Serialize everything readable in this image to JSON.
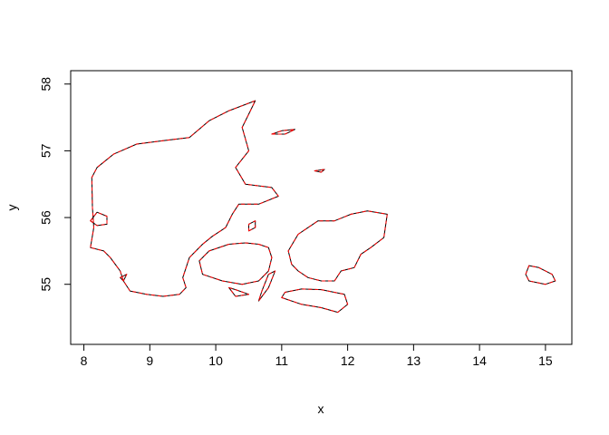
{
  "chart_data": {
    "type": "line",
    "title": "",
    "xlabel": "x",
    "ylabel": "y",
    "xlim": [
      7.8,
      15.4
    ],
    "ylim": [
      54.1,
      58.2
    ],
    "xticks": [
      8,
      9,
      10,
      11,
      12,
      13,
      14,
      15
    ],
    "yticks": [
      55,
      56,
      57,
      58
    ],
    "grid": false,
    "legend": "none",
    "series": [
      {
        "style": "solid",
        "color": "#000000",
        "polygons": [
          [
            [
              8.1,
              55.55
            ],
            [
              8.15,
              55.85
            ],
            [
              8.13,
              56.15
            ],
            [
              8.12,
              56.6
            ],
            [
              8.2,
              56.75
            ],
            [
              8.45,
              56.95
            ],
            [
              8.8,
              57.1
            ],
            [
              9.2,
              57.15
            ],
            [
              9.6,
              57.2
            ],
            [
              9.9,
              57.45
            ],
            [
              10.2,
              57.6
            ],
            [
              10.6,
              57.75
            ],
            [
              10.5,
              57.55
            ],
            [
              10.4,
              57.35
            ],
            [
              10.5,
              57.0
            ],
            [
              10.3,
              56.75
            ],
            [
              10.45,
              56.5
            ],
            [
              10.85,
              56.45
            ],
            [
              10.95,
              56.32
            ],
            [
              10.65,
              56.2
            ],
            [
              10.35,
              56.2
            ],
            [
              10.25,
              56.05
            ],
            [
              10.15,
              55.85
            ],
            [
              9.95,
              55.72
            ],
            [
              9.8,
              55.6
            ],
            [
              9.7,
              55.5
            ],
            [
              9.6,
              55.4
            ],
            [
              9.5,
              55.1
            ],
            [
              9.55,
              54.95
            ],
            [
              9.45,
              54.85
            ],
            [
              9.2,
              54.82
            ],
            [
              8.95,
              54.85
            ],
            [
              8.7,
              54.9
            ],
            [
              8.6,
              55.05
            ],
            [
              8.55,
              55.2
            ],
            [
              8.4,
              55.4
            ],
            [
              8.3,
              55.5
            ],
            [
              8.1,
              55.55
            ]
          ],
          [
            [
              10.65,
              55.6
            ],
            [
              10.8,
              55.55
            ],
            [
              10.85,
              55.4
            ],
            [
              10.8,
              55.2
            ],
            [
              10.65,
              55.05
            ],
            [
              10.4,
              55.0
            ],
            [
              10.1,
              55.05
            ],
            [
              9.8,
              55.15
            ],
            [
              9.75,
              55.35
            ],
            [
              9.9,
              55.5
            ],
            [
              10.2,
              55.6
            ],
            [
              10.45,
              55.62
            ],
            [
              10.65,
              55.6
            ]
          ],
          [
            [
              11.25,
              55.75
            ],
            [
              11.55,
              55.95
            ],
            [
              11.8,
              55.95
            ],
            [
              12.05,
              56.05
            ],
            [
              12.3,
              56.1
            ],
            [
              12.6,
              56.05
            ],
            [
              12.55,
              55.7
            ],
            [
              12.35,
              55.55
            ],
            [
              12.2,
              55.45
            ],
            [
              12.1,
              55.25
            ],
            [
              11.9,
              55.2
            ],
            [
              11.8,
              55.05
            ],
            [
              11.6,
              55.05
            ],
            [
              11.4,
              55.1
            ],
            [
              11.25,
              55.2
            ],
            [
              11.15,
              55.3
            ],
            [
              11.1,
              55.5
            ],
            [
              11.25,
              55.75
            ]
          ],
          [
            [
              11.0,
              54.8
            ],
            [
              11.3,
              54.7
            ],
            [
              11.6,
              54.65
            ],
            [
              11.85,
              54.58
            ],
            [
              12.0,
              54.7
            ],
            [
              11.95,
              54.85
            ],
            [
              11.6,
              54.92
            ],
            [
              11.3,
              54.93
            ],
            [
              11.05,
              54.88
            ],
            [
              11.0,
              54.8
            ]
          ],
          [
            [
              14.7,
              55.15
            ],
            [
              14.75,
              55.28
            ],
            [
              14.9,
              55.25
            ],
            [
              15.1,
              55.15
            ],
            [
              15.15,
              55.05
            ],
            [
              15.0,
              55.0
            ],
            [
              14.75,
              55.05
            ],
            [
              14.7,
              55.15
            ]
          ],
          [
            [
              8.1,
              55.95
            ],
            [
              8.2,
              56.08
            ],
            [
              8.35,
              56.02
            ],
            [
              8.35,
              55.9
            ],
            [
              8.2,
              55.88
            ],
            [
              8.1,
              55.95
            ]
          ],
          [
            [
              10.85,
              57.25
            ],
            [
              11.0,
              57.3
            ],
            [
              11.2,
              57.32
            ],
            [
              11.05,
              57.25
            ],
            [
              10.85,
              57.25
            ]
          ],
          [
            [
              11.5,
              56.7
            ],
            [
              11.65,
              56.72
            ],
            [
              11.6,
              56.68
            ],
            [
              11.5,
              56.7
            ]
          ],
          [
            [
              10.5,
              55.8
            ],
            [
              10.6,
              55.85
            ],
            [
              10.6,
              55.95
            ],
            [
              10.5,
              55.9
            ],
            [
              10.5,
              55.8
            ]
          ],
          [
            [
              10.8,
              55.15
            ],
            [
              10.9,
              55.2
            ],
            [
              10.8,
              54.95
            ],
            [
              10.65,
              54.75
            ],
            [
              10.7,
              54.9
            ],
            [
              10.8,
              55.15
            ]
          ],
          [
            [
              10.2,
              54.95
            ],
            [
              10.3,
              54.92
            ],
            [
              10.5,
              54.85
            ],
            [
              10.3,
              54.82
            ],
            [
              10.2,
              54.95
            ]
          ],
          [
            [
              8.55,
              55.1
            ],
            [
              8.65,
              55.15
            ],
            [
              8.6,
              55.05
            ],
            [
              8.55,
              55.1
            ]
          ]
        ]
      },
      {
        "style": "dashed",
        "color": "#ff0000",
        "polygons": [
          [
            [
              8.1,
              55.55
            ],
            [
              8.15,
              55.85
            ],
            [
              8.13,
              56.15
            ],
            [
              8.12,
              56.6
            ],
            [
              8.2,
              56.75
            ],
            [
              8.45,
              56.95
            ],
            [
              8.8,
              57.1
            ],
            [
              9.2,
              57.15
            ],
            [
              9.6,
              57.2
            ],
            [
              9.9,
              57.45
            ],
            [
              10.2,
              57.6
            ],
            [
              10.6,
              57.75
            ],
            [
              10.5,
              57.55
            ],
            [
              10.4,
              57.35
            ],
            [
              10.5,
              57.0
            ],
            [
              10.3,
              56.75
            ],
            [
              10.45,
              56.5
            ],
            [
              10.85,
              56.45
            ],
            [
              10.95,
              56.32
            ],
            [
              10.65,
              56.2
            ],
            [
              10.35,
              56.2
            ],
            [
              10.25,
              56.05
            ],
            [
              10.15,
              55.85
            ],
            [
              9.95,
              55.72
            ],
            [
              9.8,
              55.6
            ],
            [
              9.7,
              55.5
            ],
            [
              9.6,
              55.4
            ],
            [
              9.5,
              55.1
            ],
            [
              9.55,
              54.95
            ],
            [
              9.45,
              54.85
            ],
            [
              9.2,
              54.82
            ],
            [
              8.95,
              54.85
            ],
            [
              8.7,
              54.9
            ],
            [
              8.6,
              55.05
            ],
            [
              8.55,
              55.2
            ],
            [
              8.4,
              55.4
            ],
            [
              8.3,
              55.5
            ],
            [
              8.1,
              55.55
            ]
          ],
          [
            [
              10.65,
              55.6
            ],
            [
              10.8,
              55.55
            ],
            [
              10.85,
              55.4
            ],
            [
              10.8,
              55.2
            ],
            [
              10.65,
              55.05
            ],
            [
              10.4,
              55.0
            ],
            [
              10.1,
              55.05
            ],
            [
              9.8,
              55.15
            ],
            [
              9.75,
              55.35
            ],
            [
              9.9,
              55.5
            ],
            [
              10.2,
              55.6
            ],
            [
              10.45,
              55.62
            ],
            [
              10.65,
              55.6
            ]
          ],
          [
            [
              11.25,
              55.75
            ],
            [
              11.55,
              55.95
            ],
            [
              11.8,
              55.95
            ],
            [
              12.05,
              56.05
            ],
            [
              12.3,
              56.1
            ],
            [
              12.6,
              56.05
            ],
            [
              12.55,
              55.7
            ],
            [
              12.35,
              55.55
            ],
            [
              12.2,
              55.45
            ],
            [
              12.1,
              55.25
            ],
            [
              11.9,
              55.2
            ],
            [
              11.8,
              55.05
            ],
            [
              11.6,
              55.05
            ],
            [
              11.4,
              55.1
            ],
            [
              11.25,
              55.2
            ],
            [
              11.15,
              55.3
            ],
            [
              11.1,
              55.5
            ],
            [
              11.25,
              55.75
            ]
          ],
          [
            [
              11.0,
              54.8
            ],
            [
              11.3,
              54.7
            ],
            [
              11.6,
              54.65
            ],
            [
              11.85,
              54.58
            ],
            [
              12.0,
              54.7
            ],
            [
              11.95,
              54.85
            ],
            [
              11.6,
              54.92
            ],
            [
              11.3,
              54.93
            ],
            [
              11.05,
              54.88
            ],
            [
              11.0,
              54.8
            ]
          ],
          [
            [
              14.7,
              55.15
            ],
            [
              14.75,
              55.28
            ],
            [
              14.9,
              55.25
            ],
            [
              15.1,
              55.15
            ],
            [
              15.15,
              55.05
            ],
            [
              15.0,
              55.0
            ],
            [
              14.75,
              55.05
            ],
            [
              14.7,
              55.15
            ]
          ],
          [
            [
              8.1,
              55.95
            ],
            [
              8.2,
              56.08
            ],
            [
              8.35,
              56.02
            ],
            [
              8.35,
              55.9
            ],
            [
              8.2,
              55.88
            ],
            [
              8.1,
              55.95
            ]
          ],
          [
            [
              10.85,
              57.25
            ],
            [
              11.0,
              57.3
            ],
            [
              11.2,
              57.32
            ],
            [
              11.05,
              57.25
            ],
            [
              10.85,
              57.25
            ]
          ],
          [
            [
              11.5,
              56.7
            ],
            [
              11.65,
              56.72
            ],
            [
              11.6,
              56.68
            ],
            [
              11.5,
              56.7
            ]
          ],
          [
            [
              10.5,
              55.8
            ],
            [
              10.6,
              55.85
            ],
            [
              10.6,
              55.95
            ],
            [
              10.5,
              55.9
            ],
            [
              10.5,
              55.8
            ]
          ],
          [
            [
              10.8,
              55.15
            ],
            [
              10.9,
              55.2
            ],
            [
              10.8,
              54.95
            ],
            [
              10.65,
              54.75
            ],
            [
              10.7,
              54.9
            ],
            [
              10.8,
              55.15
            ]
          ],
          [
            [
              10.2,
              54.95
            ],
            [
              10.3,
              54.92
            ],
            [
              10.5,
              54.85
            ],
            [
              10.3,
              54.82
            ],
            [
              10.2,
              54.95
            ]
          ],
          [
            [
              8.55,
              55.1
            ],
            [
              8.65,
              55.15
            ],
            [
              8.6,
              55.05
            ],
            [
              8.55,
              55.1
            ]
          ]
        ]
      }
    ]
  }
}
